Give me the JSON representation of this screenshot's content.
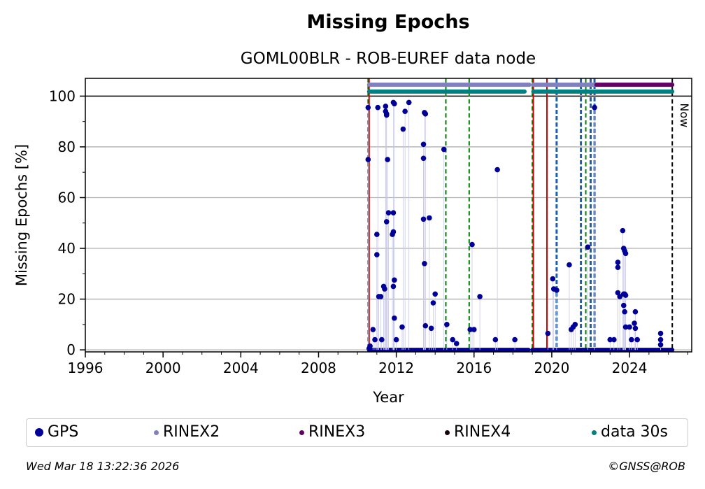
{
  "title": "Missing Epochs",
  "subtitle": "GOML00BLR - ROB-EUREF data node",
  "footer": {
    "timestamp": "Wed Mar 18 13:22:36 2026",
    "copyright": "©GNSS@ROB"
  },
  "legend": [
    {
      "label": "GPS",
      "color": "#000099"
    },
    {
      "label": "RINEX2",
      "color": "#8080c0"
    },
    {
      "label": "RINEX3",
      "color": "#660066"
    },
    {
      "label": "RINEX4",
      "color": "#1a0010"
    },
    {
      "label": "data 30s",
      "color": "#008080"
    }
  ],
  "chart_data": {
    "type": "scatter",
    "xlabel": "Year",
    "ylabel": "Missing Epochs [%]",
    "xlim": [
      1996,
      2027.2
    ],
    "ylim": [
      -0.8,
      107
    ],
    "xticks": [
      1996,
      2000,
      2004,
      2008,
      2012,
      2016,
      2020,
      2024
    ],
    "yticks": [
      0,
      20,
      40,
      60,
      80,
      100
    ],
    "grid": "horizontal",
    "now_label": "Now",
    "now_x": 2026.2,
    "hundred_line": 100,
    "red_lines": [
      2010.6,
      2019.05,
      2019.75
    ],
    "green_dashed_lines": [
      2010.55,
      2014.55,
      2015.75,
      2019.0,
      2021.75
    ],
    "blue_dashed_lines": [
      2020.25,
      2021.5,
      2022.0,
      2022.2
    ],
    "series": [
      {
        "name": "GPS",
        "color": "#000099",
        "points": [
          [
            2010.55,
            95.5
          ],
          [
            2010.55,
            75
          ],
          [
            2010.6,
            0.5
          ],
          [
            2010.65,
            1.5
          ],
          [
            2010.8,
            8
          ],
          [
            2010.9,
            4
          ],
          [
            2011.0,
            45.5
          ],
          [
            2011.0,
            37.5
          ],
          [
            2011.05,
            95.5
          ],
          [
            2011.1,
            21
          ],
          [
            2011.2,
            21
          ],
          [
            2011.25,
            4
          ],
          [
            2011.35,
            25
          ],
          [
            2011.4,
            24
          ],
          [
            2011.45,
            96
          ],
          [
            2011.45,
            94
          ],
          [
            2011.5,
            93
          ],
          [
            2011.5,
            92.5
          ],
          [
            2011.55,
            75
          ],
          [
            2011.5,
            50.5
          ],
          [
            2011.6,
            54
          ],
          [
            2011.8,
            45.5
          ],
          [
            2011.85,
            46.5
          ],
          [
            2011.85,
            54
          ],
          [
            2011.85,
            25
          ],
          [
            2011.9,
            27.5
          ],
          [
            2011.85,
            97.5
          ],
          [
            2011.9,
            97
          ],
          [
            2011.9,
            12.5
          ],
          [
            2012.0,
            4
          ],
          [
            2012.3,
            9
          ],
          [
            2012.35,
            87
          ],
          [
            2012.45,
            94
          ],
          [
            2012.65,
            97.5
          ],
          [
            2013.4,
            81
          ],
          [
            2013.4,
            75.5
          ],
          [
            2013.4,
            51.5
          ],
          [
            2013.45,
            93.5
          ],
          [
            2013.5,
            93
          ],
          [
            2013.45,
            34
          ],
          [
            2013.5,
            9.5
          ],
          [
            2013.7,
            52
          ],
          [
            2013.8,
            8.5
          ],
          [
            2013.9,
            18.5
          ],
          [
            2014.0,
            22
          ],
          [
            2014.45,
            79
          ],
          [
            2014.6,
            10
          ],
          [
            2014.9,
            4
          ],
          [
            2015.1,
            2.5
          ],
          [
            2015.8,
            8
          ],
          [
            2015.9,
            41.5
          ],
          [
            2016.0,
            8
          ],
          [
            2016.3,
            21
          ],
          [
            2017.1,
            4
          ],
          [
            2017.2,
            71
          ],
          [
            2018.1,
            4
          ],
          [
            2019.8,
            6.5
          ],
          [
            2020.05,
            28
          ],
          [
            2020.1,
            24
          ],
          [
            2020.25,
            23.5
          ],
          [
            2020.9,
            33.5
          ],
          [
            2021.0,
            8
          ],
          [
            2021.1,
            9
          ],
          [
            2021.2,
            10
          ],
          [
            2021.85,
            40.5
          ],
          [
            2022.2,
            95.5
          ],
          [
            2023.0,
            4
          ],
          [
            2023.2,
            4
          ],
          [
            2023.4,
            32.5
          ],
          [
            2023.4,
            34.5
          ],
          [
            2023.4,
            22.5
          ],
          [
            2023.5,
            21
          ],
          [
            2023.65,
            47
          ],
          [
            2023.7,
            40
          ],
          [
            2023.75,
            39
          ],
          [
            2023.8,
            38
          ],
          [
            2023.7,
            22
          ],
          [
            2023.75,
            22
          ],
          [
            2023.8,
            21.5
          ],
          [
            2023.7,
            17.5
          ],
          [
            2023.75,
            15
          ],
          [
            2023.8,
            9
          ],
          [
            2024.0,
            9
          ],
          [
            2024.1,
            4
          ],
          [
            2024.25,
            10.5
          ],
          [
            2024.3,
            8.5
          ],
          [
            2024.3,
            15
          ],
          [
            2024.4,
            4
          ],
          [
            2025.6,
            6.5
          ],
          [
            2025.6,
            4
          ],
          [
            2025.6,
            2
          ]
        ],
        "zero_ranges": [
          [
            2010.6,
            2018.8
          ],
          [
            2019.0,
            2026.2
          ]
        ]
      }
    ],
    "availability_bars": [
      {
        "name": "RINEX2",
        "color": "#8080c0",
        "y": 104.5,
        "from": 2010.6,
        "to": 2022.3,
        "gap": [
          2018.85,
          2019.05
        ]
      },
      {
        "name": "RINEX3",
        "color": "#660066",
        "y": 104.5,
        "from": 2022.3,
        "to": 2026.2
      },
      {
        "name": "data 30s",
        "color": "#008080",
        "y": 101.8,
        "from": 2010.6,
        "to": 2026.2,
        "gap": [
          2018.6,
          2019.05
        ]
      }
    ]
  }
}
